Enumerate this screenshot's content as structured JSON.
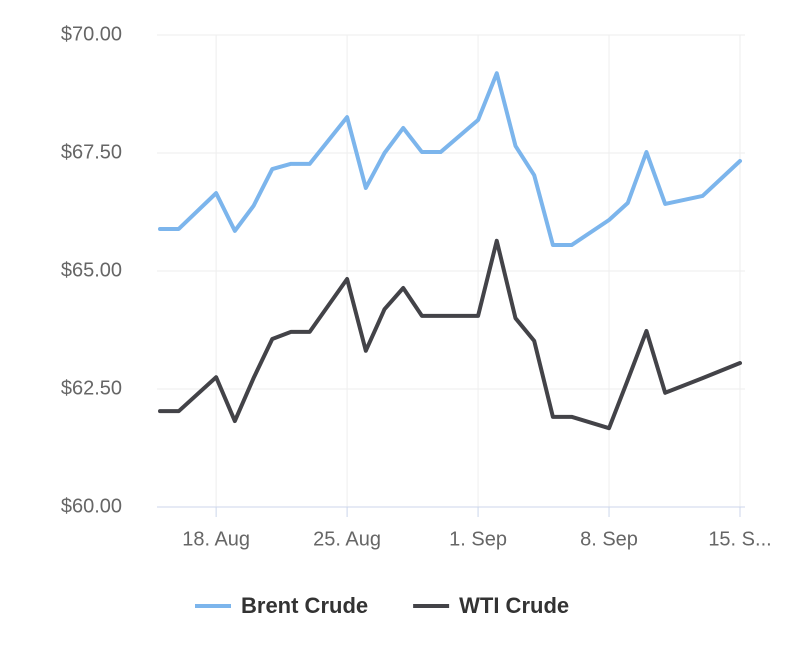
{
  "chart_data": {
    "type": "line",
    "x": [
      "Aug 15",
      "Aug 16",
      "Aug 18",
      "Aug 19",
      "Aug 20",
      "Aug 21",
      "Aug 22",
      "Aug 23",
      "Aug 25",
      "Aug 26",
      "Aug 27",
      "Aug 28",
      "Aug 29",
      "Aug 30",
      "Sep 1",
      "Sep 2",
      "Sep 3",
      "Sep 4",
      "Sep 5",
      "Sep 6",
      "Sep 8",
      "Sep 9",
      "Sep 10",
      "Sep 11",
      "Sep 13",
      "Sep 15"
    ],
    "series": [
      {
        "name": "Brent Crude",
        "color": "#7cb5ec",
        "values": [
          65.89,
          65.89,
          66.65,
          65.85,
          66.38,
          67.16,
          67.27,
          67.27,
          68.26,
          66.76,
          67.5,
          68.03,
          67.52,
          67.52,
          68.2,
          69.19,
          67.65,
          67.03,
          65.55,
          65.55,
          66.08,
          66.44,
          67.52,
          66.42,
          66.59,
          67.33
        ]
      },
      {
        "name": "WTI Crude",
        "color": "#434348",
        "values": [
          62.03,
          62.03,
          62.75,
          61.82,
          62.73,
          63.56,
          63.71,
          63.71,
          64.83,
          63.31,
          64.19,
          64.64,
          64.05,
          64.05,
          64.05,
          65.64,
          64.0,
          63.52,
          61.91,
          61.91,
          61.67,
          62.69,
          63.73,
          62.42,
          62.73,
          63.05
        ]
      }
    ],
    "xlim": [
      "Aug 15",
      "Sep 15"
    ],
    "xticks": [
      {
        "value": "Aug 18",
        "label": "18. Aug"
      },
      {
        "value": "Aug 25",
        "label": "25. Aug"
      },
      {
        "value": "Sep 1",
        "label": "1. Sep"
      },
      {
        "value": "Sep 8",
        "label": "8. Sep"
      },
      {
        "value": "Sep 15",
        "label": "15. S..."
      }
    ],
    "ylim": [
      60,
      70
    ],
    "yticks": [
      {
        "value": 60,
        "label": "$60.00"
      },
      {
        "value": 62.5,
        "label": "$62.50"
      },
      {
        "value": 65,
        "label": "$65.00"
      },
      {
        "value": 67.5,
        "label": "$67.50"
      },
      {
        "value": 70,
        "label": "$70.00"
      }
    ],
    "grid": true,
    "legend": "bottom"
  }
}
